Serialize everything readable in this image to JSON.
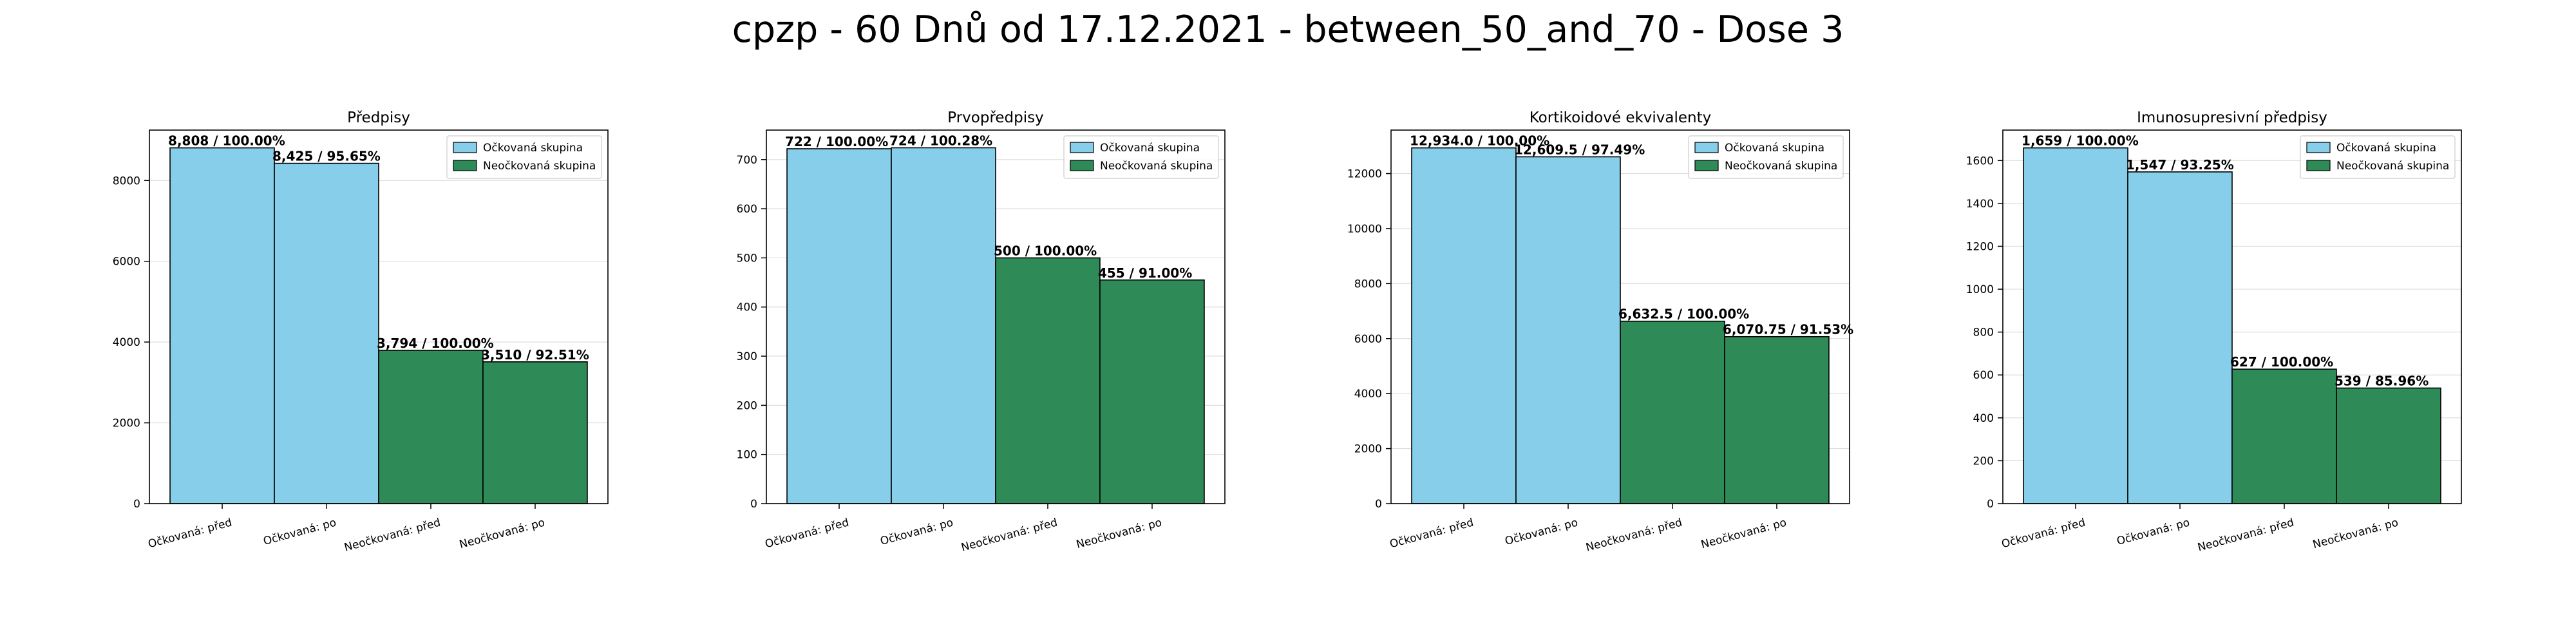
{
  "figure": {
    "suptitle": "cpzp - 60 Dnů od 17.12.2021 - between_50_and_70 - Dose 3"
  },
  "colors": {
    "vaccinated": "#87ceeb",
    "unvaccinated": "#2e8b57",
    "edge": "#000000",
    "grid": "#dddddd"
  },
  "chart_data": [
    {
      "type": "bar",
      "title": "Předpisy",
      "categories": [
        "Očkovaná: před",
        "Očkovaná: po",
        "Neočkovaná: před",
        "Neočkovaná: po"
      ],
      "values": [
        8808,
        8425,
        3794,
        3510
      ],
      "labels": [
        "8,808 / 100.00%",
        "8,425 / 95.65%",
        "3,794 / 100.00%",
        "3,510 / 92.51%"
      ],
      "group": [
        "vaccinated",
        "vaccinated",
        "unvaccinated",
        "unvaccinated"
      ],
      "ylim": [
        0,
        9248
      ],
      "yticks": [
        0,
        2000,
        4000,
        6000,
        8000
      ],
      "legend": [
        "Očkovaná skupina",
        "Neočkovaná skupina"
      ],
      "legend_loc": "upper right",
      "grid": "y"
    },
    {
      "type": "bar",
      "title": "Prvopředpisy",
      "categories": [
        "Očkovaná: před",
        "Očkovaná: po",
        "Neočkovaná: před",
        "Neočkovaná: po"
      ],
      "values": [
        722,
        724,
        500,
        455
      ],
      "labels": [
        "722 / 100.00%",
        "724 / 100.28%",
        "500 / 100.00%",
        "455 / 91.00%"
      ],
      "group": [
        "vaccinated",
        "vaccinated",
        "unvaccinated",
        "unvaccinated"
      ],
      "ylim": [
        0,
        760
      ],
      "yticks": [
        0,
        100,
        200,
        300,
        400,
        500,
        600,
        700
      ],
      "legend": [
        "Očkovaná skupina",
        "Neočkovaná skupina"
      ],
      "legend_loc": "upper right",
      "grid": "y"
    },
    {
      "type": "bar",
      "title": "Kortikoidové ekvivalenty",
      "categories": [
        "Očkovaná: před",
        "Očkovaná: po",
        "Neočkovaná: před",
        "Neočkovaná: po"
      ],
      "values": [
        12934.0,
        12609.5,
        6632.5,
        6070.75
      ],
      "labels": [
        "12,934.0 / 100.00%",
        "12,609.5 / 97.49%",
        "6,632.5 / 100.00%",
        "6,070.75 / 91.53%"
      ],
      "group": [
        "vaccinated",
        "vaccinated",
        "unvaccinated",
        "unvaccinated"
      ],
      "ylim": [
        0,
        13581
      ],
      "yticks": [
        0,
        2000,
        4000,
        6000,
        8000,
        10000,
        12000
      ],
      "legend": [
        "Očkovaná skupina",
        "Neočkovaná skupina"
      ],
      "legend_loc": "upper right",
      "grid": "y"
    },
    {
      "type": "bar",
      "title": "Imunosupresivní předpisy",
      "categories": [
        "Očkovaná: před",
        "Očkovaná: po",
        "Neočkovaná: před",
        "Neočkovaná: po"
      ],
      "values": [
        1659,
        1547,
        627,
        539
      ],
      "labels": [
        "1,659 / 100.00%",
        "1,547 / 93.25%",
        "627 / 100.00%",
        "539 / 85.96%"
      ],
      "group": [
        "vaccinated",
        "vaccinated",
        "unvaccinated",
        "unvaccinated"
      ],
      "ylim": [
        0,
        1742
      ],
      "yticks": [
        0,
        200,
        400,
        600,
        800,
        1000,
        1200,
        1400,
        1600
      ],
      "legend": [
        "Očkovaná skupina",
        "Neočkovaná skupina"
      ],
      "legend_loc": "upper right",
      "grid": "y"
    }
  ]
}
